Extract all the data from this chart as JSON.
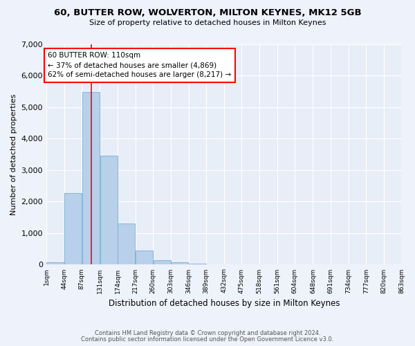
{
  "title": "60, BUTTER ROW, WOLVERTON, MILTON KEYNES, MK12 5GB",
  "subtitle": "Size of property relative to detached houses in Milton Keynes",
  "xlabel": "Distribution of detached houses by size in Milton Keynes",
  "ylabel": "Number of detached properties",
  "bar_color": "#b8d0ea",
  "bar_edge_color": "#7aafd4",
  "background_color": "#e8eef8",
  "grid_color": "#ffffff",
  "fig_background": "#eef2fb",
  "red_line_x": 110,
  "annotation_line1": "60 BUTTER ROW: 110sqm",
  "annotation_line2": "← 37% of detached houses are smaller (4,869)",
  "annotation_line3": "62% of semi-detached houses are larger (8,217) →",
  "footer1": "Contains HM Land Registry data © Crown copyright and database right 2024.",
  "footer2": "Contains public sector information licensed under the Open Government Licence v3.0.",
  "bin_edges": [
    1,
    44,
    87,
    131,
    174,
    217,
    260,
    303,
    346,
    389,
    432,
    475,
    518,
    561,
    604,
    648,
    691,
    734,
    777,
    820,
    863
  ],
  "bar_heights": [
    75,
    2280,
    5480,
    3450,
    1310,
    460,
    150,
    80,
    40,
    0,
    0,
    0,
    0,
    0,
    0,
    0,
    0,
    0,
    0,
    0
  ],
  "ylim": [
    0,
    7000
  ],
  "yticks": [
    0,
    1000,
    2000,
    3000,
    4000,
    5000,
    6000,
    7000
  ]
}
